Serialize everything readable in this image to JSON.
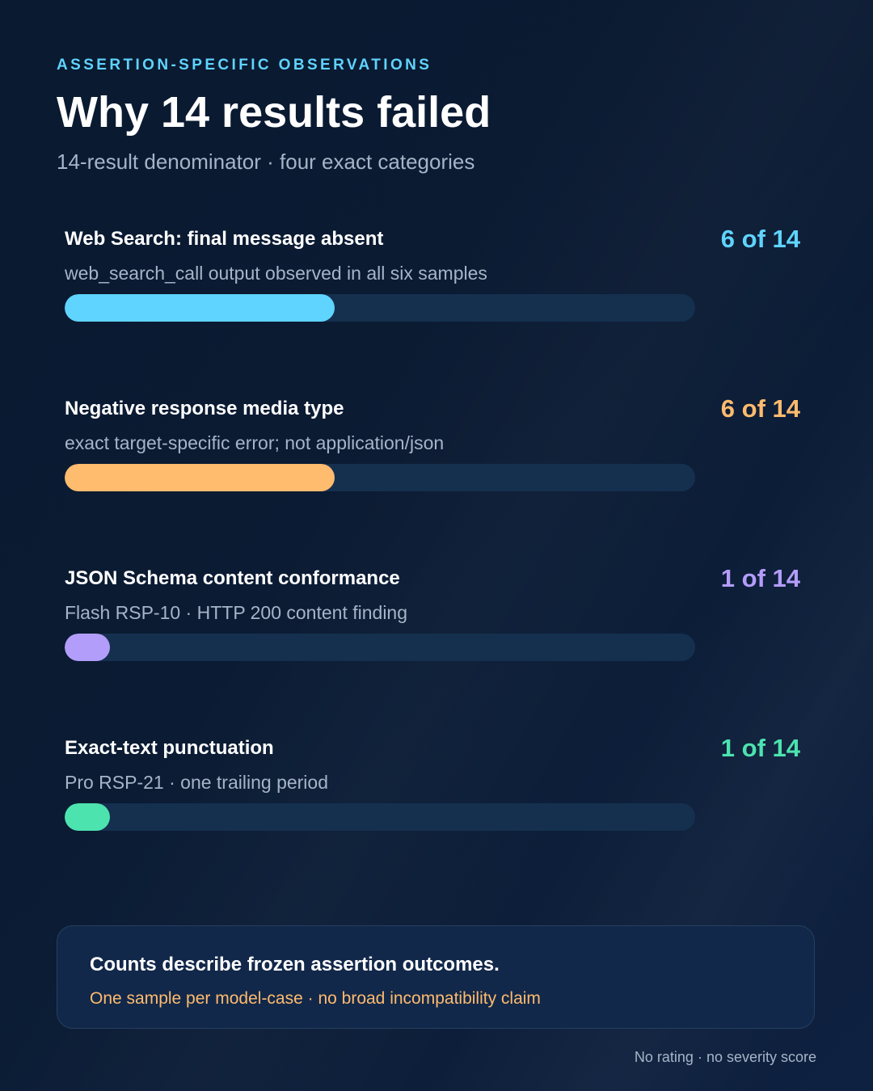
{
  "header": {
    "eyebrow": "ASSERTION-SPECIFIC OBSERVATIONS",
    "title": "Why 14 results failed",
    "subtitle": "14-result denominator · four exact categories"
  },
  "chart_data": {
    "type": "bar",
    "orientation": "horizontal",
    "total": 14,
    "xlim": [
      0,
      14
    ],
    "grid": false,
    "categories": [
      "Web Search: final message absent",
      "Negative response media type",
      "JSON Schema content conformance",
      "Exact-text punctuation"
    ],
    "values": [
      6,
      6,
      1,
      1
    ],
    "notes": [
      "web_search_call output observed in all six samples",
      "exact target-specific error; not application/json",
      "Flash RSP-10 · HTTP 200 content finding",
      "Pro RSP-21 · one trailing period"
    ],
    "count_labels": [
      "6 of 14",
      "6 of 14",
      "1 of 14",
      "1 of 14"
    ],
    "colors": [
      "#5fd4ff",
      "#ffbb6e",
      "#b39dfa",
      "#4ce3ae"
    ],
    "track_color": "#15304f"
  },
  "callout": {
    "title": "Counts describe frozen assertion outcomes.",
    "note": "One sample per model-case · no broad incompatibility claim"
  },
  "footer": {
    "text": "No rating · no severity score"
  }
}
